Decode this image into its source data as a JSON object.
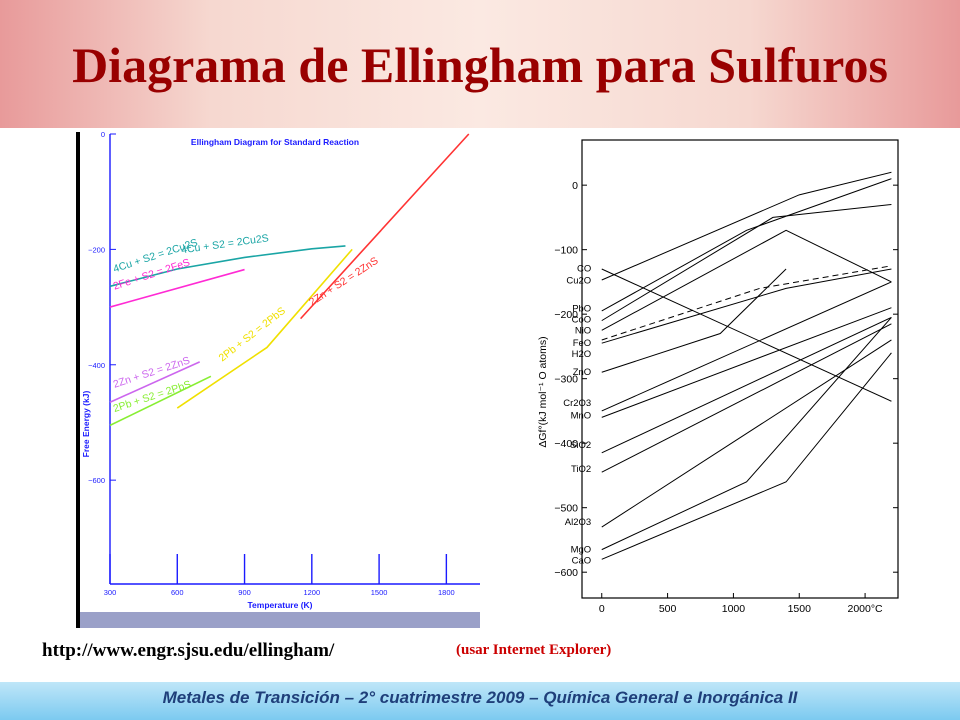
{
  "slide": {
    "title": "Diagrama de Ellingham para Sulfuros",
    "url": "http://www.engr.sjsu.edu/ellingham/",
    "note": "(usar Internet Explorer)",
    "footer": "Metales de Transición – 2° cuatrimestre 2009 – Química General e Inorgánica II"
  },
  "chart_data": [
    {
      "type": "line",
      "title": "Ellingham Diagram for Standard Reaction",
      "xlabel": "Temperature (K)",
      "ylabel": "Free Energy (kJ)",
      "x_ticks": [
        300,
        600,
        900,
        1200,
        1500,
        1800
      ],
      "y_ticks": [
        0,
        -200,
        -400,
        -600
      ],
      "xlim": [
        300,
        1950
      ],
      "ylim": [
        -780,
        0
      ],
      "background": "#ffffff",
      "series": [
        {
          "name": "4Cu + S2 = 2Cu2S",
          "color": "#1aa5a5",
          "x": [
            300,
            600,
            900,
            1200,
            1350
          ],
          "y": [
            -264,
            -234,
            -214,
            -199,
            -194
          ]
        },
        {
          "name": "2Fe + S2 = 2FeS",
          "color": "#ff2ad4",
          "x": [
            300,
            900
          ],
          "y": [
            -300,
            -235
          ]
        },
        {
          "name": "2Zn + S2 = 2ZnS",
          "color": "#ff3333",
          "x": [
            1150,
            1900
          ],
          "y": [
            -320,
            0
          ]
        },
        {
          "name": "2Pb + S2 = 2PbS",
          "color": "#f0e000",
          "x": [
            600,
            1000,
            1380
          ],
          "y": [
            -475,
            -370,
            -200
          ]
        },
        {
          "name": "2Zn + S2 = 2ZnS",
          "color": "#cc66ee",
          "x": [
            300,
            700
          ],
          "y": [
            -465,
            -395
          ]
        },
        {
          "name": "2Pb + S2 = 2PbS",
          "color": "#88ee33",
          "x": [
            300,
            750
          ],
          "y": [
            -505,
            -420
          ]
        }
      ],
      "labels": [
        {
          "text": "4Cu + S2 = 2Cu2S",
          "color": "#1aa5a5",
          "x": 320,
          "y": -240
        },
        {
          "text": "4Cu + S2 = 2Cu2S",
          "color": "#1aa5a5",
          "x": 620,
          "y": -207
        },
        {
          "text": "2Fe + S2 = 2FeS",
          "color": "#ff2ad4",
          "x": 320,
          "y": -270
        },
        {
          "text": "2Zn + S2 = 2ZnS",
          "color": "#ff3333",
          "x": 1200,
          "y": -298
        },
        {
          "text": "2Zn + S2 = 2ZnS",
          "color": "#cc66ee",
          "x": 320,
          "y": -440
        },
        {
          "text": "2Pb + S2 = 2PbS",
          "color": "#f0e000",
          "x": 800,
          "y": -395
        },
        {
          "text": "2Pb + S2 = 2PbS",
          "color": "#88ee33",
          "x": 320,
          "y": -482
        }
      ]
    },
    {
      "type": "line",
      "title": "",
      "xlabel": "",
      "ylabel": "ΔGf°(kJ mol⁻¹ O atoms)",
      "x_ticks": [
        "0",
        "500",
        "1000",
        "1500",
        "2000°C"
      ],
      "x_tick_values": [
        0,
        500,
        1000,
        1500,
        2000
      ],
      "y_ticks": [
        0,
        -100,
        -200,
        -300,
        -400,
        -500,
        -600
      ],
      "xlim": [
        -150,
        2250
      ],
      "ylim": [
        -640,
        70
      ],
      "series": [
        {
          "name": "CO",
          "x": [
            0,
            2200
          ],
          "y": [
            -130,
            -335
          ],
          "label_x": -80,
          "label_y": -129
        },
        {
          "name": "Cu2O",
          "x": [
            0,
            1500,
            2200
          ],
          "y": [
            -147,
            -15,
            20
          ],
          "label_x": -80,
          "label_y": -148
        },
        {
          "name": "PbO",
          "x": [
            0,
            1100,
            2200
          ],
          "y": [
            -195,
            -70,
            10
          ],
          "label_x": -80,
          "label_y": -191
        },
        {
          "name": "CoO",
          "x": [
            0,
            1300,
            2200
          ],
          "y": [
            -210,
            -50,
            -30
          ],
          "label_x": -80,
          "label_y": -208
        },
        {
          "name": "NiO",
          "x": [
            0,
            1400,
            2200
          ],
          "y": [
            -225,
            -70,
            -150
          ],
          "label_x": -80,
          "label_y": -225
        },
        {
          "name": "FeO",
          "x": [
            0,
            1400,
            2200
          ],
          "y": [
            -245,
            -160,
            -130
          ],
          "label_x": -80,
          "label_y": -245
        },
        {
          "name": "H2O",
          "x": [
            0,
            1200,
            2200
          ],
          "y": [
            -240,
            -160,
            -125
          ],
          "dashed": true,
          "label_x": -80,
          "label_y": -262
        },
        {
          "name": "ZnO",
          "x": [
            0,
            900,
            1400
          ],
          "y": [
            -290,
            -230,
            -130
          ],
          "label_x": -80,
          "label_y": -290
        },
        {
          "name": "Cr2O3",
          "x": [
            0,
            2200
          ],
          "y": [
            -350,
            -150
          ],
          "label_x": -80,
          "label_y": -338
        },
        {
          "name": "MnO",
          "x": [
            0,
            2200
          ],
          "y": [
            -360,
            -190
          ],
          "label_x": -80,
          "label_y": -357
        },
        {
          "name": "SiO2",
          "x": [
            0,
            2200
          ],
          "y": [
            -415,
            -205
          ],
          "label_x": -80,
          "label_y": -403
        },
        {
          "name": "TiO2",
          "x": [
            0,
            2200
          ],
          "y": [
            -445,
            -215
          ],
          "label_x": -80,
          "label_y": -440
        },
        {
          "name": "Al2O3",
          "x": [
            0,
            2200
          ],
          "y": [
            -530,
            -240
          ],
          "label_x": -80,
          "label_y": -522
        },
        {
          "name": "MgO",
          "x": [
            0,
            1100,
            2200
          ],
          "y": [
            -565,
            -460,
            -205
          ],
          "label_x": -80,
          "label_y": -565
        },
        {
          "name": "CaO",
          "x": [
            0,
            1400,
            2200
          ],
          "y": [
            -580,
            -460,
            -260
          ],
          "label_x": -80,
          "label_y": -582
        }
      ]
    }
  ]
}
